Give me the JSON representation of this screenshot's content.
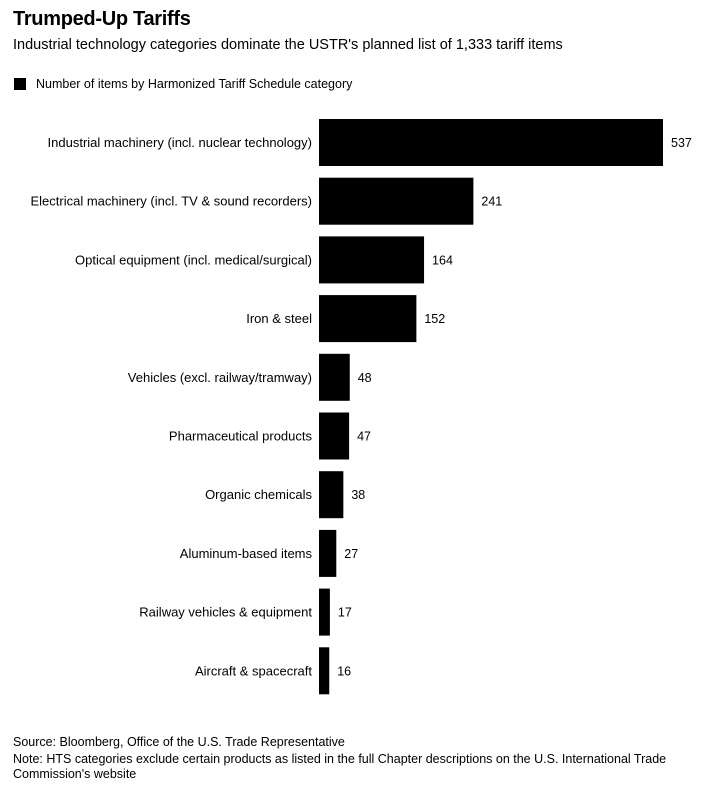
{
  "header": {
    "title": "Trumped-Up Tariffs",
    "subtitle": "Industrial technology categories dominate the USTR's planned list of 1,333 tariff items"
  },
  "legend": {
    "label": "Number of items by Harmonized Tariff Schedule category",
    "color": "#000000"
  },
  "chart_data": {
    "type": "bar",
    "orientation": "horizontal",
    "categories": [
      "Industrial machinery (incl. nuclear technology)",
      "Electrical machinery (incl. TV & sound recorders)",
      "Optical equipment (incl. medical/surgical)",
      "Iron & steel",
      "Vehicles (excl. railway/tramway)",
      "Pharmaceutical products",
      "Organic chemicals",
      "Aluminum-based items",
      "Railway vehicles & equipment",
      "Aircraft & spacecraft"
    ],
    "series": [
      {
        "name": "Number of items by Harmonized Tariff Schedule category",
        "values": [
          537,
          241,
          164,
          152,
          48,
          47,
          38,
          27,
          17,
          16
        ],
        "color": "#000000"
      }
    ],
    "xlim": [
      0,
      537
    ],
    "grid": false,
    "legend_position": "top-left"
  },
  "footer": {
    "source": "Source: Bloomberg, Office of the U.S. Trade Representative",
    "note": "Note: HTS categories exclude certain products as listed in the full Chapter descriptions on the U.S. International Trade Commission's website"
  }
}
